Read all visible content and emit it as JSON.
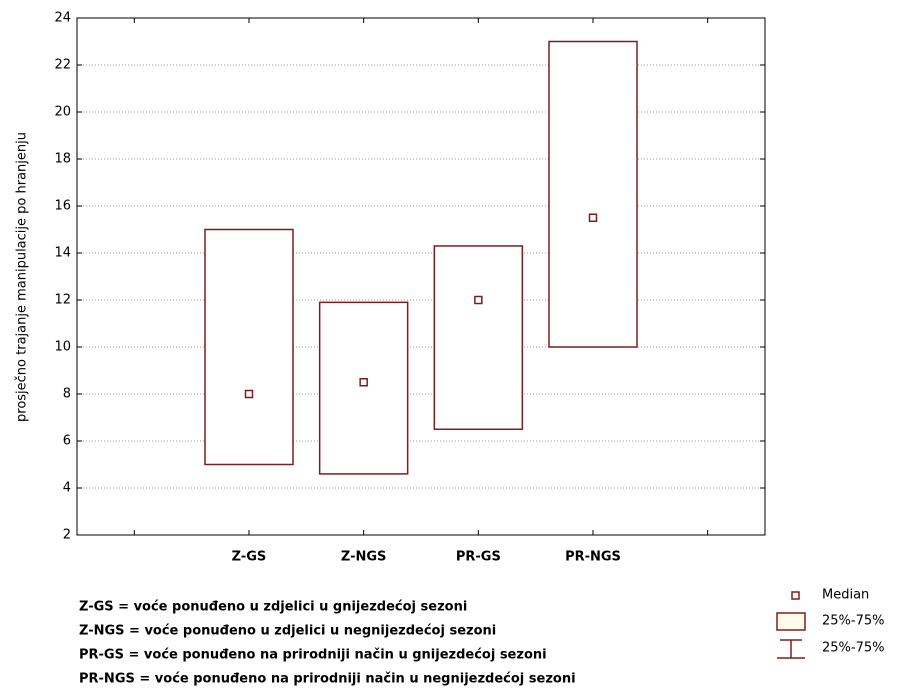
{
  "chart_data": {
    "type": "box",
    "y_label": "prosječno trajanje manipulacije po hranjenju",
    "categories": [
      null,
      "Z-GS",
      "Z-NGS",
      "PR-GS",
      "PR-NGS",
      null
    ],
    "median": {
      "name": "Median",
      "values": [
        null,
        8,
        8.5,
        12,
        15.5,
        null
      ]
    },
    "box": {
      "name": "25%-75%",
      "low": [
        null,
        5,
        4.6,
        6.5,
        10,
        null
      ],
      "high": [
        null,
        15,
        11.9,
        14.3,
        23,
        null
      ]
    },
    "whisker_name": "25%-75%",
    "color": "#7f1d1d",
    "ylim": [
      2,
      24
    ],
    "yticks": [
      2,
      4,
      6,
      8,
      10,
      12,
      14,
      16,
      18,
      20,
      22,
      24
    ],
    "grid": true,
    "legend": "lower right",
    "notes": [
      "Z-GS = voće ponuđeno u zdjelici u gnijezdećoj sezoni",
      "Z-NGS = voće ponuđeno u zdjelici u negnijezdećoj sezoni",
      "PR-GS = voće ponuđeno na prirodniji način u gnijezdećoj sezoni",
      "PR-NGS = voće ponuđeno na prirodniji način u negnijezdećoj sezoni"
    ]
  }
}
